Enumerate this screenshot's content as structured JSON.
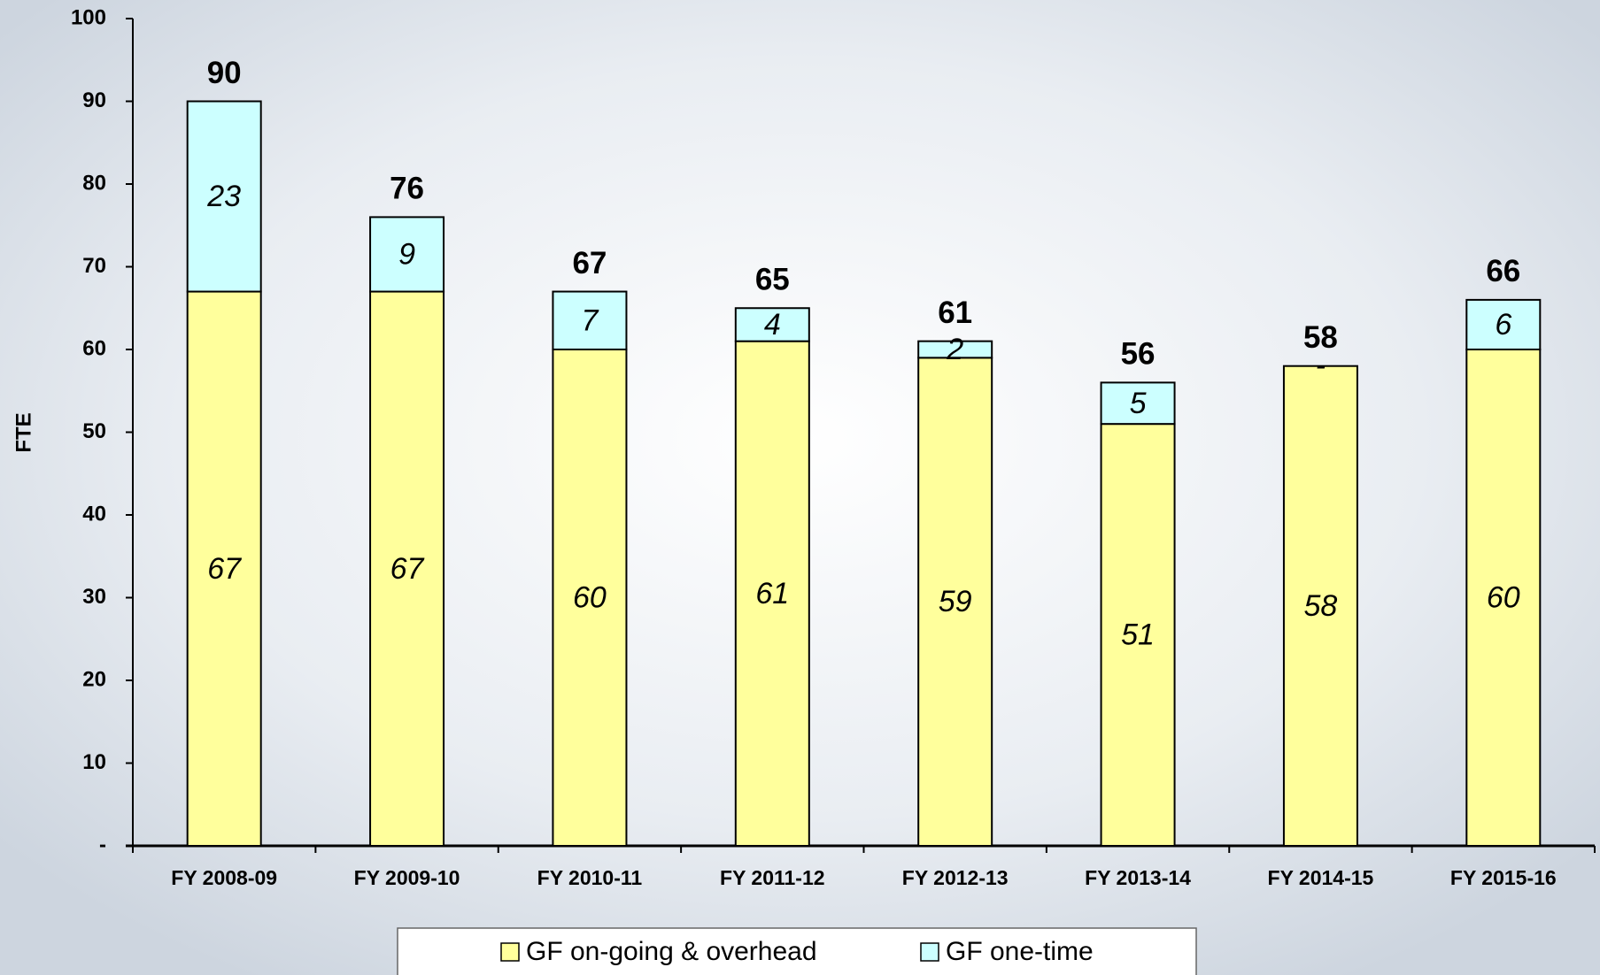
{
  "chart_data": {
    "type": "stacked-bar",
    "ylabel": "FTE",
    "categories": [
      "FY 2008-09",
      "FY 2009-10",
      "FY 2010-11",
      "FY 2011-12",
      "FY 2012-13",
      "FY 2013-14",
      "FY 2014-15",
      "FY 2015-16"
    ],
    "series": [
      {
        "name": "GF on-going & overhead",
        "color": "#ffff9c",
        "values": [
          67,
          67,
          60,
          61,
          59,
          51,
          58,
          60
        ]
      },
      {
        "name": "GF one-time",
        "color": "#ccffff",
        "values": [
          23,
          9,
          7,
          4,
          2,
          5,
          0,
          6
        ],
        "value_labels": [
          "23",
          "9",
          "7",
          "4",
          "2",
          "5",
          "-",
          "6"
        ]
      }
    ],
    "totals": [
      90,
      76,
      67,
      65,
      61,
      56,
      58,
      66
    ],
    "ylim": [
      0,
      100
    ],
    "yticks": [
      {
        "value": 0,
        "label": "-"
      },
      10,
      20,
      30,
      40,
      50,
      60,
      70,
      80,
      90,
      100
    ],
    "legend": "bottom"
  }
}
